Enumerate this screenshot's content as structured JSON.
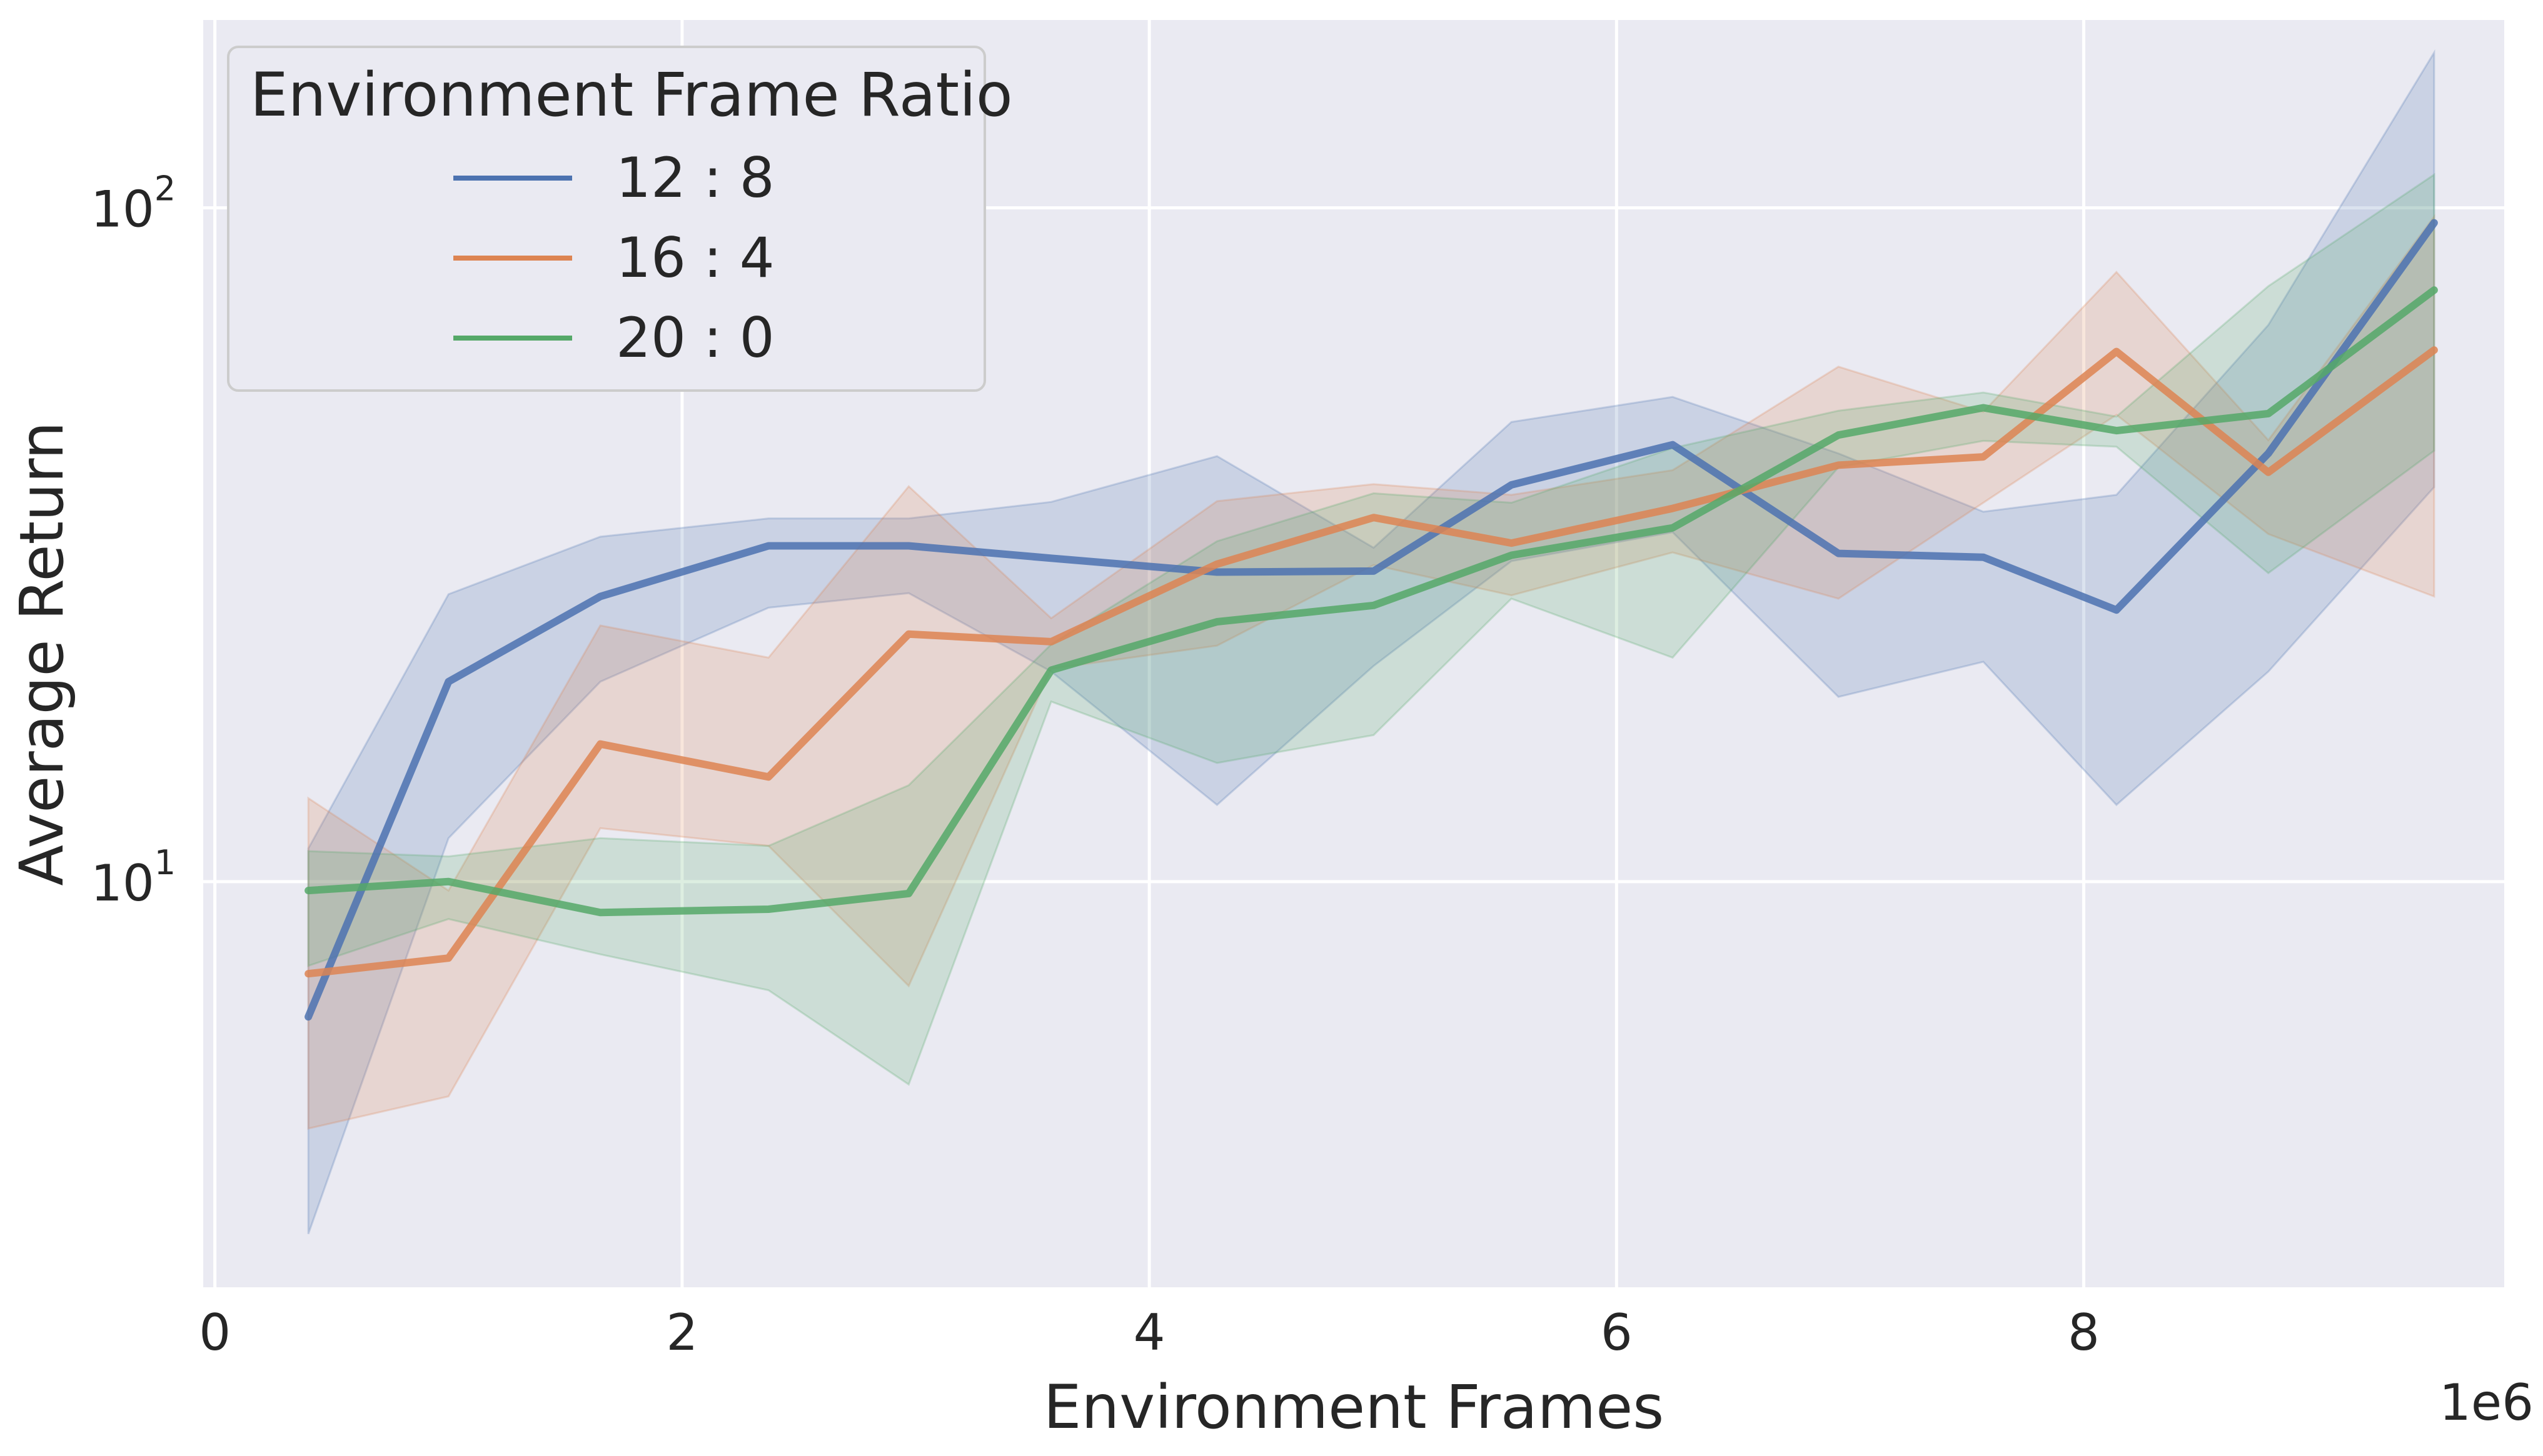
{
  "chart_data": {
    "type": "line",
    "title": "",
    "xlabel": "Environment Frames",
    "ylabel": "Average Return",
    "x_offset_label": "1e6",
    "xlim": [
      -0.05,
      9.8
    ],
    "ylim": [
      2.5,
      190
    ],
    "yscale": "log",
    "grid": true,
    "legend": {
      "title": "Environment Frame Ratio",
      "placement": "top-left"
    },
    "x_ticks": [
      {
        "value": 0,
        "label": "0"
      },
      {
        "value": 2,
        "label": "2"
      },
      {
        "value": 4,
        "label": "4"
      },
      {
        "value": 6,
        "label": "6"
      },
      {
        "value": 8,
        "label": "8"
      }
    ],
    "y_ticks": [
      {
        "value": 10,
        "base": "10",
        "exp": "1"
      },
      {
        "value": 100,
        "base": "10",
        "exp": "2"
      }
    ],
    "x": [
      0.4,
      1.0,
      1.65,
      2.37,
      2.97,
      3.58,
      4.29,
      4.96,
      5.55,
      6.24,
      6.95,
      7.57,
      8.14,
      8.79,
      9.5
    ],
    "series": [
      {
        "name": "12 : 8",
        "color": "#4c72b0",
        "values": [
          6.3,
          19.8,
          26.5,
          31.5,
          31.5,
          30.2,
          28.8,
          28.9,
          38.8,
          44.5,
          30.7,
          30.3,
          25.3,
          43.2,
          95.0
        ],
        "lower": [
          3.0,
          11.6,
          19.8,
          25.5,
          26.8,
          20.5,
          13.0,
          20.9,
          29.9,
          33.0,
          18.8,
          21.2,
          13.0,
          20.5,
          38.5
        ],
        "upper": [
          11.2,
          26.7,
          32.5,
          34.6,
          34.6,
          36.6,
          42.8,
          31.3,
          48.1,
          52.4,
          43.2,
          35.4,
          37.5,
          67.0,
          170.0
        ]
      },
      {
        "name": "16 : 4",
        "color": "#dd8452",
        "values": [
          7.3,
          7.7,
          16.0,
          14.3,
          23.3,
          22.7,
          29.6,
          34.7,
          31.8,
          35.8,
          41.5,
          42.7,
          61.2,
          40.5,
          61.5
        ],
        "lower": [
          4.3,
          4.8,
          12.0,
          11.3,
          7.0,
          20.7,
          22.4,
          29.5,
          26.6,
          30.8,
          26.3,
          36.5,
          49.3,
          32.8,
          26.5
        ],
        "upper": [
          13.3,
          9.7,
          24.0,
          21.5,
          38.6,
          24.6,
          36.7,
          38.9,
          37.5,
          40.8,
          58.1,
          49.8,
          80.3,
          45.2,
          97.0
        ]
      },
      {
        "name": "20 : 0",
        "color": "#55a868",
        "values": [
          9.7,
          10.0,
          9.0,
          9.1,
          9.6,
          20.6,
          24.3,
          25.7,
          30.5,
          33.5,
          46.0,
          50.5,
          46.7,
          49.5,
          75.5
        ],
        "lower": [
          7.5,
          8.8,
          7.8,
          6.9,
          5.0,
          18.5,
          15.0,
          16.5,
          26.3,
          21.5,
          41.2,
          45.1,
          44.2,
          28.7,
          43.6
        ],
        "upper": [
          11.1,
          10.9,
          11.6,
          11.3,
          13.9,
          22.5,
          32.0,
          37.7,
          36.5,
          44.0,
          50.0,
          53.2,
          49.0,
          76.5,
          112.0
        ]
      }
    ]
  }
}
